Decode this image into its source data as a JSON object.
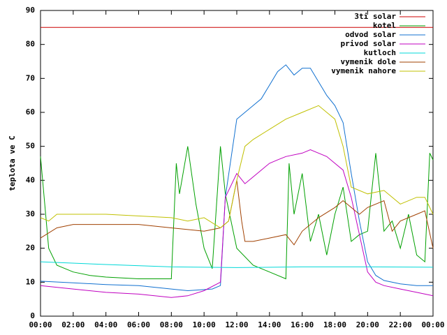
{
  "chart_data": {
    "type": "line",
    "y_label": "teplota ve C",
    "xlim": [
      0,
      24
    ],
    "xticks": [
      {
        "value": 0,
        "label": "00:00"
      },
      {
        "value": 2,
        "label": "02:00"
      },
      {
        "value": 4,
        "label": "04:00"
      },
      {
        "value": 6,
        "label": "06:00"
      },
      {
        "value": 8,
        "label": "08:00"
      },
      {
        "value": 10,
        "label": "10:00"
      },
      {
        "value": 12,
        "label": "12:00"
      },
      {
        "value": 14,
        "label": "14:00"
      },
      {
        "value": 16,
        "label": "16:00"
      },
      {
        "value": 18,
        "label": "18:00"
      },
      {
        "value": 20,
        "label": "20:00"
      },
      {
        "value": 22,
        "label": "22:00"
      },
      {
        "value": 24,
        "label": "00:00"
      }
    ],
    "ylim": [
      0,
      90
    ],
    "yticks": [
      0,
      10,
      20,
      30,
      40,
      50,
      60,
      70,
      80,
      90
    ],
    "grid": false,
    "legend": "top-right",
    "series": [
      {
        "name": "3ti solar",
        "color": "#cc0000",
        "x": [
          0,
          24
        ],
        "values": [
          85,
          85
        ]
      },
      {
        "name": "kotel",
        "color": "#00a000",
        "x": [
          0,
          0.5,
          1,
          2,
          3,
          4,
          6,
          8,
          8.3,
          8.5,
          9,
          9.5,
          10,
          10.5,
          11,
          11.3,
          12,
          13,
          14,
          15,
          15.2,
          15.5,
          16,
          16.5,
          17,
          17.5,
          18,
          18.5,
          19,
          19.5,
          20,
          20.5,
          21,
          21.5,
          22,
          22.5,
          23,
          23.5,
          23.8,
          24
        ],
        "values": [
          47,
          20,
          15,
          13,
          12,
          11.5,
          11,
          11,
          45,
          36,
          50,
          33,
          20,
          14,
          50,
          36,
          20,
          15,
          13,
          11,
          45,
          30,
          42,
          22,
          30,
          18,
          30,
          38,
          22,
          24,
          25,
          48,
          25,
          28,
          20,
          30,
          18,
          16,
          48,
          46
        ]
      },
      {
        "name": "odvod solar",
        "color": "#1070d0",
        "x": [
          0,
          2,
          4,
          6,
          8,
          9,
          10.5,
          11,
          11.3,
          12,
          12.5,
          13,
          13.5,
          14,
          14.5,
          15,
          15.5,
          16,
          16.5,
          17,
          17.5,
          18,
          18.5,
          19,
          19.5,
          20,
          20.5,
          21,
          22,
          23,
          24
        ],
        "values": [
          10.3,
          9.8,
          9.3,
          9,
          8,
          7.5,
          8,
          9,
          35,
          58,
          60,
          62,
          64,
          68,
          72,
          74,
          71,
          73,
          73,
          69,
          65,
          62,
          57,
          42,
          28,
          16,
          12,
          10.5,
          9.5,
          9,
          9
        ]
      },
      {
        "name": "privod solar",
        "color": "#c000c0",
        "x": [
          0,
          2,
          4,
          6,
          8,
          9,
          10,
          11,
          11.3,
          12,
          12.5,
          13,
          13.5,
          14,
          14.5,
          15,
          16,
          16.5,
          17,
          17.5,
          18,
          18.5,
          19,
          19.5,
          20,
          20.5,
          21,
          22,
          23,
          24
        ],
        "values": [
          9,
          8,
          7,
          6.5,
          5.5,
          6,
          7.5,
          10,
          35,
          42,
          39,
          41,
          43,
          45,
          46,
          47,
          48,
          49,
          48,
          47,
          45,
          43,
          35,
          24,
          13,
          10,
          9,
          8,
          7,
          6
        ]
      },
      {
        "name": "kutloch",
        "color": "#00d8d8",
        "x": [
          0,
          4,
          8,
          12,
          16,
          20,
          24
        ],
        "values": [
          16,
          15.2,
          14.5,
          14.3,
          14.5,
          14.5,
          14.4
        ]
      },
      {
        "name": "vymenik dole",
        "color": "#a04000",
        "x": [
          0,
          1,
          2,
          6,
          8,
          10,
          11,
          11.5,
          12,
          12.3,
          12.5,
          13,
          14,
          15,
          15.5,
          16,
          17,
          18,
          18.5,
          19,
          19.5,
          20,
          21,
          21.5,
          22,
          23,
          23.5,
          24
        ],
        "values": [
          23,
          26,
          27,
          27,
          26,
          25,
          26,
          28,
          40,
          28,
          22,
          22,
          23,
          24,
          21,
          25,
          29,
          32,
          34,
          32,
          30,
          32,
          34,
          25,
          28,
          30,
          31,
          20
        ]
      },
      {
        "name": "vymenik nahore",
        "color": "#c0c000",
        "x": [
          0,
          0.5,
          1,
          4,
          8,
          9,
          10,
          11,
          11.5,
          12,
          12.5,
          13,
          14,
          15,
          16,
          17,
          17.5,
          18,
          18.5,
          19,
          20,
          21,
          22,
          23,
          23.5,
          24
        ],
        "values": [
          29,
          28,
          30,
          30,
          29,
          28,
          29,
          26,
          28,
          40,
          50,
          52,
          55,
          58,
          60,
          62,
          60,
          58,
          50,
          38,
          36,
          37,
          33,
          35,
          35,
          30
        ]
      }
    ]
  }
}
